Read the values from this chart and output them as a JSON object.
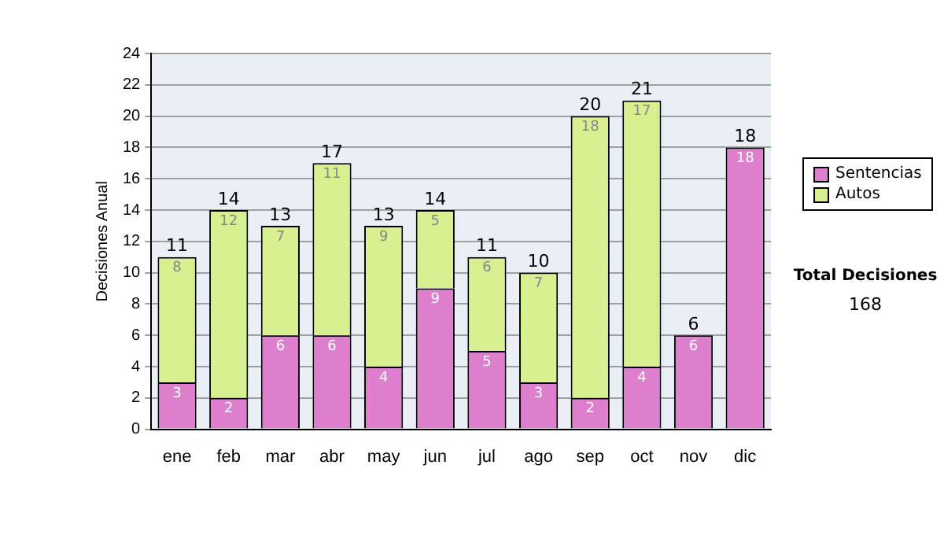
{
  "chart_data": {
    "type": "bar",
    "stacked": true,
    "ylabel": "Decisiones Anual",
    "categories": [
      "ene",
      "feb",
      "mar",
      "abr",
      "may",
      "jun",
      "jul",
      "ago",
      "sep",
      "oct",
      "nov",
      "dic"
    ],
    "series": [
      {
        "name": "Sentencias",
        "color": "#dd7fcd",
        "values": [
          3,
          2,
          6,
          6,
          4,
          9,
          5,
          3,
          2,
          4,
          6,
          18
        ],
        "value_labels": [
          "3",
          "2",
          "6",
          "6",
          "4",
          "9",
          "5",
          "3",
          "2",
          "4",
          "6",
          "18"
        ]
      },
      {
        "name": "Autos",
        "color": "#d9f090",
        "values": [
          8,
          12,
          7,
          11,
          9,
          5,
          6,
          7,
          18,
          17,
          0,
          0
        ],
        "value_labels": [
          "8",
          "12",
          "7",
          "11",
          "9",
          "5",
          "6",
          "7",
          "18",
          "17",
          null,
          null
        ]
      }
    ],
    "totals": [
      "11",
      "14",
      "13",
      "17",
      "13",
      "14",
      "11",
      "10",
      "20",
      "21",
      "6",
      "18"
    ],
    "ylim": [
      0,
      24
    ],
    "yticks": [
      0,
      2,
      4,
      6,
      8,
      10,
      12,
      14,
      16,
      18,
      20,
      22,
      24
    ],
    "grid": "y",
    "legend": "right",
    "annotations": [
      "Total Decisiones",
      "168"
    ]
  }
}
